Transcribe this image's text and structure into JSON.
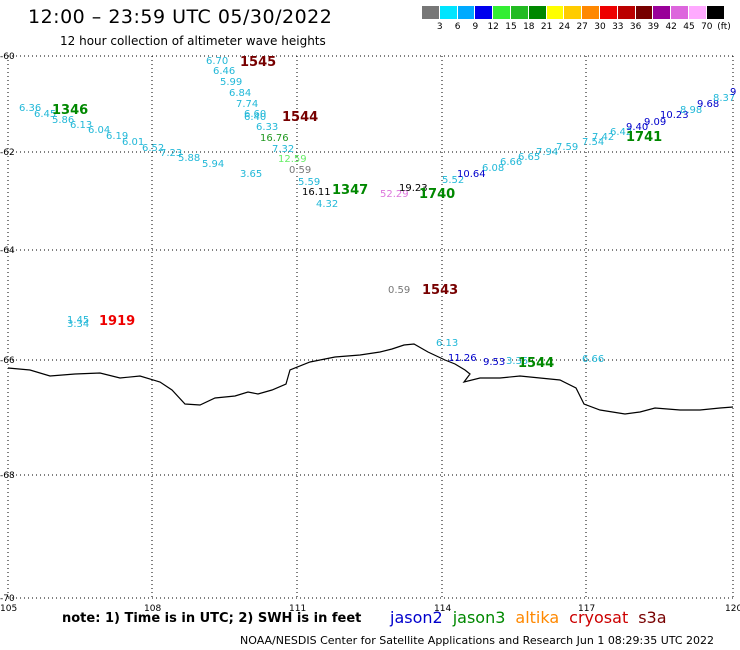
{
  "header": {
    "title": "12:00 – 23:59 UTC 05/30/2022",
    "subtitle": "12 hour collection of altimeter wave heights"
  },
  "colorbar": {
    "unit": "(ft)",
    "colors": [
      "#777777",
      "#00e5ff",
      "#00aaff",
      "#0000ee",
      "#33ee33",
      "#22bb22",
      "#008800",
      "#ffff00",
      "#ffcc00",
      "#ff8800",
      "#ee0000",
      "#bb0000",
      "#770000",
      "#990099",
      "#dd66dd",
      "#ffaaff",
      "#000000"
    ],
    "labels": [
      "3",
      "6",
      "9",
      "12",
      "15",
      "18",
      "21",
      "24",
      "27",
      "30",
      "33",
      "36",
      "39",
      "42",
      "45",
      "70"
    ]
  },
  "axes": {
    "lon_labels": [
      "105",
      "108",
      "111",
      "114",
      "117",
      "120"
    ],
    "lat_labels": [
      "-60",
      "-62",
      "-64",
      "-66",
      "-68",
      "-70"
    ]
  },
  "wave_values": [
    {
      "t": "6.70",
      "c": "#22b8d8"
    },
    {
      "t": "6.46",
      "c": "#22b8d8"
    },
    {
      "t": "5.99",
      "c": "#22b8d8"
    },
    {
      "t": "6.84",
      "c": "#22b8d8"
    },
    {
      "t": "7.74",
      "c": "#22b8d8"
    },
    {
      "t": "6.60",
      "c": "#22b8d8"
    },
    {
      "t": "6.40",
      "c": "#22b8d8"
    },
    {
      "t": "6.33",
      "c": "#22b8d8"
    },
    {
      "t": "16.76",
      "c": "#229922"
    },
    {
      "t": "7.32",
      "c": "#22b8d8"
    },
    {
      "t": "12.59",
      "c": "#66ee66"
    },
    {
      "t": "0.59",
      "c": "#777777"
    },
    {
      "t": "5.59",
      "c": "#22b8d8"
    },
    {
      "t": "3.65",
      "c": "#22b8d8"
    },
    {
      "t": "16.11",
      "c": "#000000"
    },
    {
      "t": "4.32",
      "c": "#22b8d8"
    },
    {
      "t": "6.36",
      "c": "#22b8d8"
    },
    {
      "t": "6.45",
      "c": "#22b8d8"
    },
    {
      "t": "5.86",
      "c": "#22b8d8"
    },
    {
      "t": "6.13",
      "c": "#22b8d8"
    },
    {
      "t": "6.04",
      "c": "#22b8d8"
    },
    {
      "t": "6.19",
      "c": "#22b8d8"
    },
    {
      "t": "6.01",
      "c": "#22b8d8"
    },
    {
      "t": "6.52",
      "c": "#22b8d8"
    },
    {
      "t": "7.23",
      "c": "#22b8d8"
    },
    {
      "t": "5.88",
      "c": "#22b8d8"
    },
    {
      "t": "5.94",
      "c": "#22b8d8"
    },
    {
      "t": "52.29",
      "c": "#dd77dd"
    },
    {
      "t": "19.23",
      "c": "#000000"
    },
    {
      "t": "5.52",
      "c": "#22b8d8"
    },
    {
      "t": "10.64",
      "c": "#0000cc"
    },
    {
      "t": "6.08",
      "c": "#22b8d8"
    },
    {
      "t": "6.66",
      "c": "#22b8d8"
    },
    {
      "t": "6.65",
      "c": "#22b8d8"
    },
    {
      "t": "7.94",
      "c": "#22b8d8"
    },
    {
      "t": "7.59",
      "c": "#22b8d8"
    },
    {
      "t": "7.54",
      "c": "#22b8d8"
    },
    {
      "t": "7.42",
      "c": "#22b8d8"
    },
    {
      "t": "6.42",
      "c": "#22b8d8"
    },
    {
      "t": "9.40",
      "c": "#0000cc"
    },
    {
      "t": "9.09",
      "c": "#0000cc"
    },
    {
      "t": "10.23",
      "c": "#0000cc"
    },
    {
      "t": "8.98",
      "c": "#22b8d8"
    },
    {
      "t": "9.68",
      "c": "#0000cc"
    },
    {
      "t": "8.37",
      "c": "#22b8d8"
    },
    {
      "t": "9",
      "c": "#0000cc"
    },
    {
      "t": "0.59",
      "c": "#777777"
    },
    {
      "t": "1.45",
      "c": "#22b8d8"
    },
    {
      "t": "3.34",
      "c": "#22b8d8"
    },
    {
      "t": "6.13",
      "c": "#22b8d8"
    },
    {
      "t": "11.26",
      "c": "#0000cc"
    },
    {
      "t": "9.53",
      "c": "#0000cc"
    },
    {
      "t": "3.35",
      "c": "#22b8d8"
    },
    {
      "t": "6.66",
      "c": "#22b8d8"
    }
  ],
  "pass_labels": [
    {
      "t": "1545",
      "c": "#770000"
    },
    {
      "t": "1544",
      "c": "#770000"
    },
    {
      "t": "1346",
      "c": "#008800"
    },
    {
      "t": "1347",
      "c": "#008800"
    },
    {
      "t": "1740",
      "c": "#008800"
    },
    {
      "t": "1741",
      "c": "#008800"
    },
    {
      "t": "1543",
      "c": "#770000"
    },
    {
      "t": "1919",
      "c": "#ee0000"
    },
    {
      "t": "1544",
      "c": "#008800"
    }
  ],
  "note": "note: 1) Time is in UTC; 2) SWH is in feet",
  "legend": [
    {
      "name": "jason2",
      "color": "#0000cc"
    },
    {
      "name": "jason3",
      "color": "#008800"
    },
    {
      "name": "altika",
      "color": "#ff8800"
    },
    {
      "name": "cryosat",
      "color": "#cc0000"
    },
    {
      "name": "s3a",
      "color": "#770000"
    }
  ],
  "footer": "NOAA/NESDIS Center for Satellite Applications and Research    Jun  1 08:29:35 UTC 2022"
}
